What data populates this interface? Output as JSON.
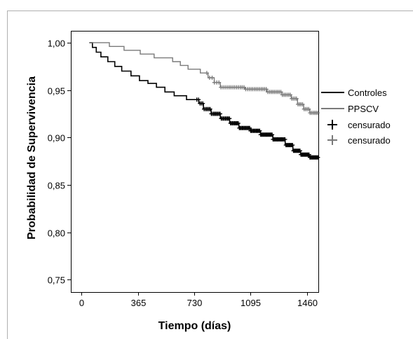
{
  "chart_data": {
    "type": "line",
    "subtype": "kaplan-meier survival curve",
    "xlabel": "Tiempo (días)",
    "ylabel": "Probabilidad de Supervivencia",
    "xlim": [
      -70,
      1535
    ],
    "ylim": [
      0.737,
      1.0125
    ],
    "x_ticks": [
      0,
      365,
      730,
      1095,
      1460
    ],
    "x_tick_labels": [
      "0",
      "365",
      "730",
      "1095",
      "1460"
    ],
    "y_ticks": [
      0.75,
      0.8,
      0.85,
      0.9,
      0.95,
      1.0
    ],
    "y_tick_labels": [
      "0,75",
      "0,80",
      "0,85",
      "0,90",
      "0,95",
      "1,00"
    ],
    "legend_placement": "right",
    "legend": [
      {
        "label": "Controles",
        "kind": "line",
        "series": "controles"
      },
      {
        "label": "PPSCV",
        "kind": "line",
        "series": "ppscv"
      },
      {
        "label": "censurado",
        "kind": "censor",
        "series": "controles"
      },
      {
        "label": "censurado",
        "kind": "censor",
        "series": "ppscv"
      }
    ],
    "series": [
      {
        "id": "controles",
        "name": "Controles",
        "color": "#000000",
        "line_width": 1.6,
        "steps": [
          [
            50,
            1.0
          ],
          [
            70,
            0.995
          ],
          [
            95,
            0.99
          ],
          [
            125,
            0.985
          ],
          [
            170,
            0.98
          ],
          [
            215,
            0.975
          ],
          [
            260,
            0.97
          ],
          [
            320,
            0.965
          ],
          [
            375,
            0.96
          ],
          [
            430,
            0.957
          ],
          [
            485,
            0.953
          ],
          [
            540,
            0.948
          ],
          [
            600,
            0.944
          ],
          [
            680,
            0.94
          ],
          [
            760,
            0.936
          ],
          [
            790,
            0.93
          ],
          [
            840,
            0.925
          ],
          [
            900,
            0.92
          ],
          [
            960,
            0.915
          ],
          [
            1020,
            0.91
          ],
          [
            1095,
            0.907
          ],
          [
            1160,
            0.903
          ],
          [
            1240,
            0.898
          ],
          [
            1320,
            0.892
          ],
          [
            1370,
            0.886
          ],
          [
            1420,
            0.882
          ],
          [
            1475,
            0.879
          ],
          [
            1535,
            0.879
          ]
        ],
        "censored_x_range": [
          740,
          1535
        ],
        "censored_count": 130
      },
      {
        "id": "ppscv",
        "name": "PPSCV",
        "color": "#7a7a7a",
        "line_width": 1.4,
        "steps": [
          [
            50,
            1.0
          ],
          [
            180,
            0.996
          ],
          [
            275,
            0.992
          ],
          [
            380,
            0.988
          ],
          [
            470,
            0.984
          ],
          [
            590,
            0.98
          ],
          [
            640,
            0.976
          ],
          [
            690,
            0.972
          ],
          [
            770,
            0.968
          ],
          [
            820,
            0.963
          ],
          [
            860,
            0.958
          ],
          [
            900,
            0.953
          ],
          [
            1000,
            0.953
          ],
          [
            1060,
            0.951
          ],
          [
            1150,
            0.951
          ],
          [
            1200,
            0.948
          ],
          [
            1300,
            0.945
          ],
          [
            1360,
            0.941
          ],
          [
            1400,
            0.935
          ],
          [
            1440,
            0.93
          ],
          [
            1480,
            0.926
          ],
          [
            1535,
            0.926
          ]
        ],
        "censored_x_range": [
          800,
          1535
        ],
        "censored_count": 65
      }
    ]
  }
}
